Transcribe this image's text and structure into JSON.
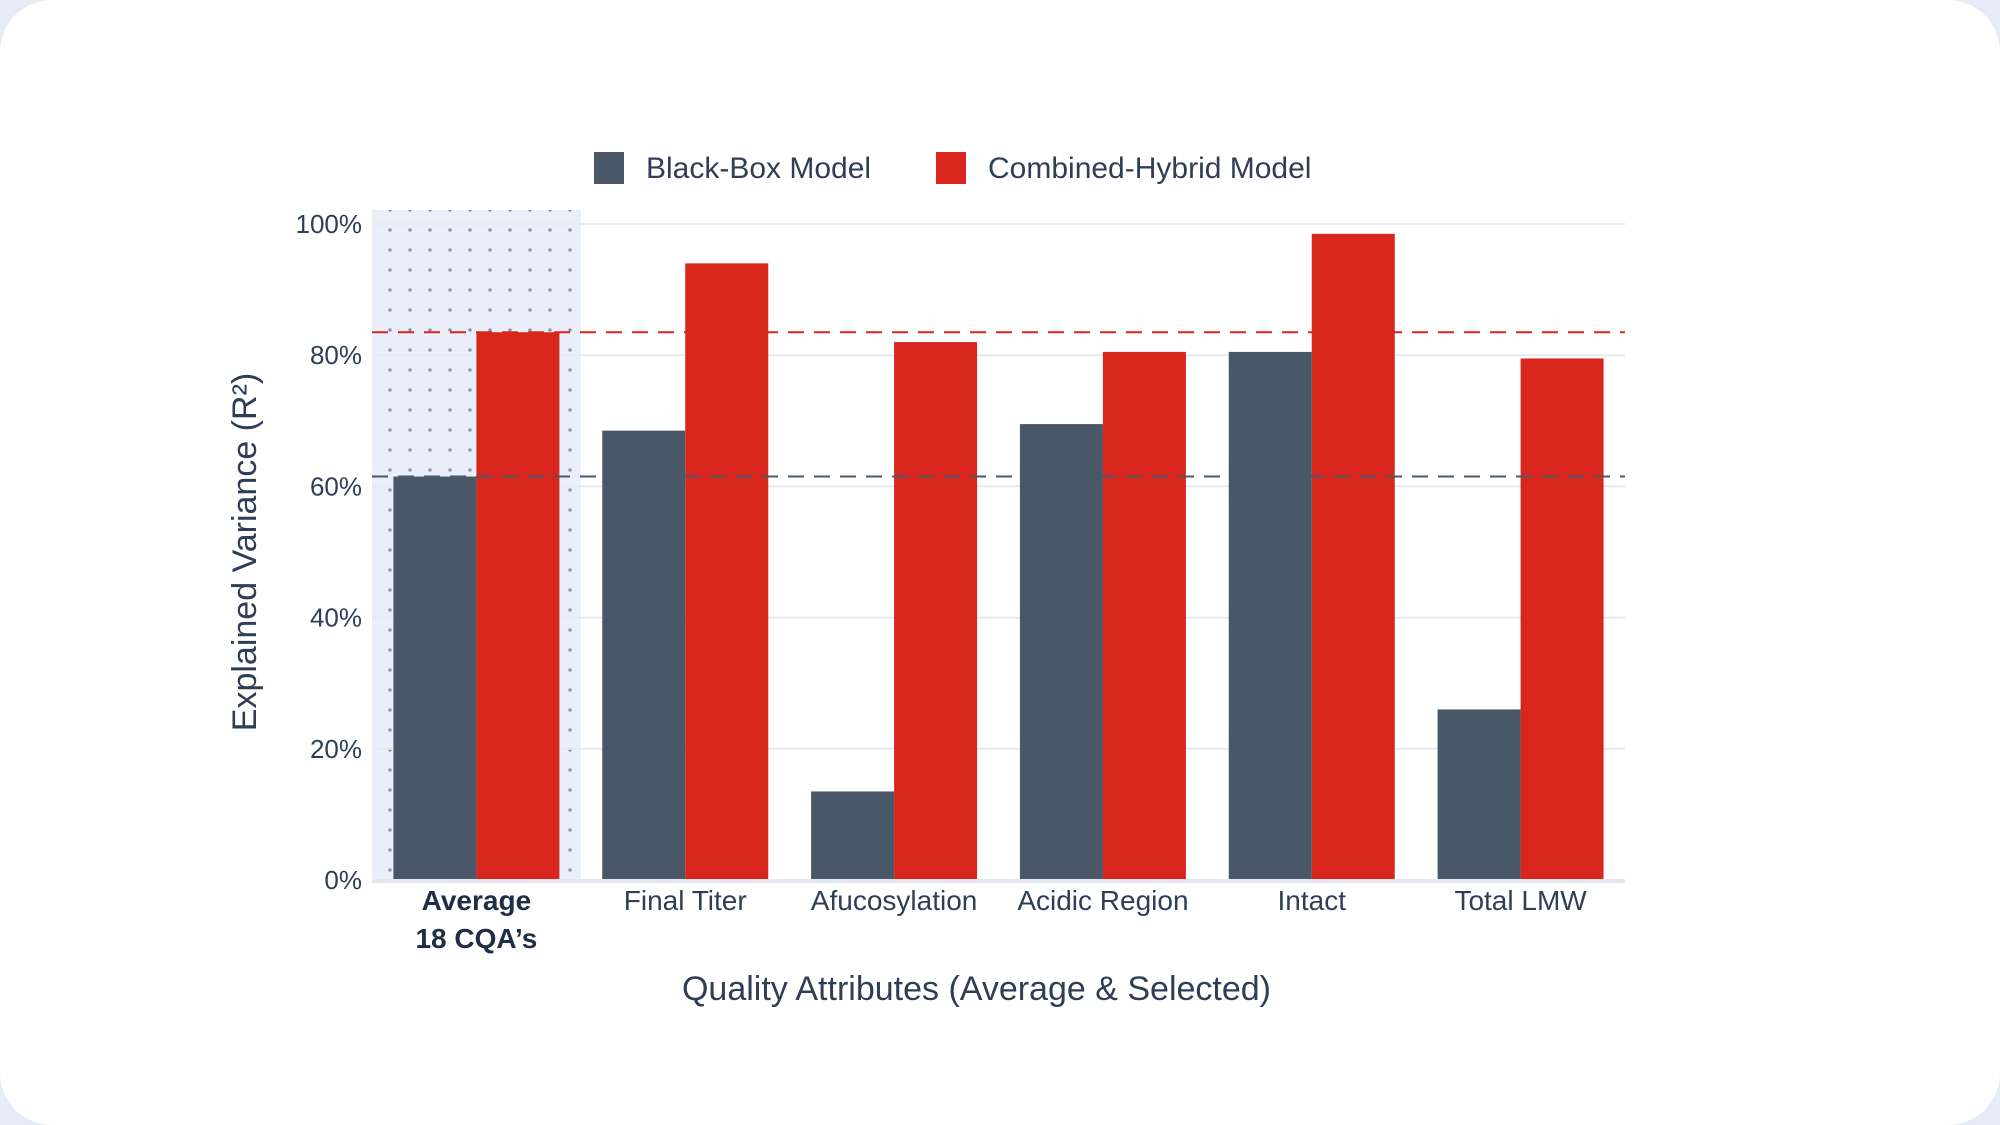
{
  "chart_data": {
    "type": "bar",
    "xlabel": "Quality Attributes (Average & Selected)",
    "ylabel": "Explained Variance (R²)",
    "ylim": [
      0,
      100
    ],
    "yticks": [
      "0%",
      "20%",
      "40%",
      "60%",
      "80%",
      "100%"
    ],
    "ytick_values": [
      0,
      20,
      40,
      60,
      80,
      100
    ],
    "categories": [
      "Average 18 CQA’s",
      "Final Titer",
      "Afucosylation",
      "Acidic Region",
      "Intact",
      "Total LMW"
    ],
    "category_lines": [
      [
        "Average",
        "18 CQA’s"
      ],
      [
        "Final Titer"
      ],
      [
        "Afucosylation"
      ],
      [
        "Acidic Region"
      ],
      [
        "Intact"
      ],
      [
        "Total LMW"
      ]
    ],
    "highlighted_category": "Average 18 CQA’s",
    "series": [
      {
        "name": "Black-Box Model",
        "color": "#485868",
        "values": [
          61.5,
          68.5,
          13.5,
          69.5,
          80.5,
          26
        ]
      },
      {
        "name": "Combined-Hybrid Model",
        "color": "#d9261c",
        "values": [
          83.5,
          94,
          82,
          80.5,
          98.5,
          79.5
        ]
      }
    ],
    "reference_lines": [
      {
        "series": "Black-Box Model",
        "value": 61.5,
        "color": "#485868",
        "style": "dashed"
      },
      {
        "series": "Combined-Hybrid Model",
        "value": 83.5,
        "color": "#d9261c",
        "style": "dashed"
      }
    ],
    "grid": true,
    "legend_position": "top-center"
  }
}
